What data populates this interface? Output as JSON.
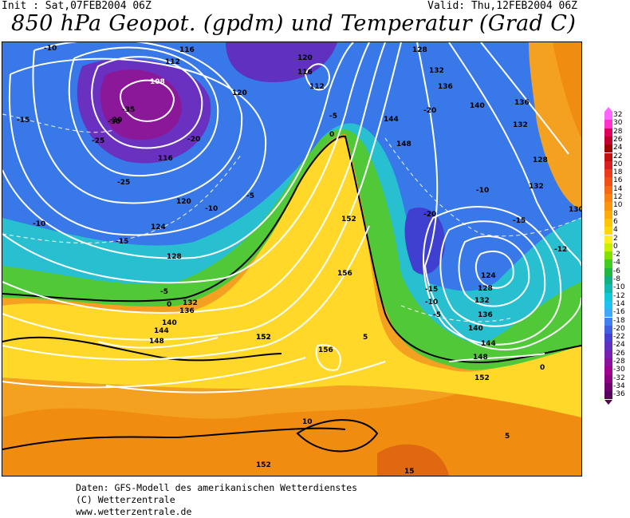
{
  "header": {
    "init": "Init : Sat,07FEB2004 06Z",
    "valid": "Valid: Thu,12FEB2004 06Z",
    "title": "850 hPa Geopot. (gpdm) und Temperatur (Grad C)"
  },
  "legend": {
    "levels": [
      "32",
      "30",
      "28",
      "26",
      "24",
      "22",
      "20",
      "18",
      "16",
      "14",
      "12",
      "10",
      "8",
      "6",
      "4",
      "2",
      "0",
      "-2",
      "-4",
      "-6",
      "-8",
      "-10",
      "-12",
      "-14",
      "-16",
      "-18",
      "-20",
      "-22",
      "-24",
      "-26",
      "-28",
      "-30",
      "-32",
      "-34",
      "-36"
    ],
    "colors": [
      "#ff66ff",
      "#ff33cc",
      "#e0005a",
      "#c0002a",
      "#a00000",
      "#c01010",
      "#d82020",
      "#e83c1c",
      "#f05018",
      "#f46a14",
      "#f88012",
      "#fa960e",
      "#fcac0a",
      "#fec40a",
      "#ffd80a",
      "#ffee20",
      "#c8f000",
      "#80e000",
      "#40cc20",
      "#20b840",
      "#10b080",
      "#10b8b0",
      "#10c8d8",
      "#20c0f0",
      "#40a8f8",
      "#4080f0",
      "#4060e0",
      "#4840d0",
      "#6030c0",
      "#7820b0",
      "#8c109c",
      "#a00090",
      "#8a0080",
      "#700070",
      "#580060"
    ]
  },
  "map": {
    "height_labels": [
      "116",
      "112",
      "108",
      "120",
      "116",
      "112",
      "128",
      "132",
      "136",
      "140",
      "132",
      "136",
      "128",
      "132",
      "130",
      "144",
      "148",
      "152",
      "156",
      "152",
      "124",
      "128",
      "132",
      "136",
      "140",
      "144",
      "148",
      "152",
      "120",
      "124",
      "128",
      "132",
      "136",
      "140",
      "144",
      "148",
      "152",
      "156",
      "152",
      "116",
      "120"
    ],
    "temperature_labels": [
      "-10",
      "-15",
      "-20",
      "-25",
      "-30",
      "-35",
      "-20",
      "-10",
      "-5",
      "0",
      "5",
      "10",
      "15",
      "-25",
      "-15",
      "-10",
      "-5",
      "0",
      "-5",
      "-10",
      "-15",
      "-20",
      "-12",
      "-10",
      "-15",
      "-20",
      "-5",
      "0",
      "5"
    ]
  },
  "footer": {
    "line1": "Daten: GFS-Modell des amerikanischen Wetterdienstes",
    "line2": "(C) Wetterzentrale",
    "line3": "www.wetterzentrale.de"
  }
}
